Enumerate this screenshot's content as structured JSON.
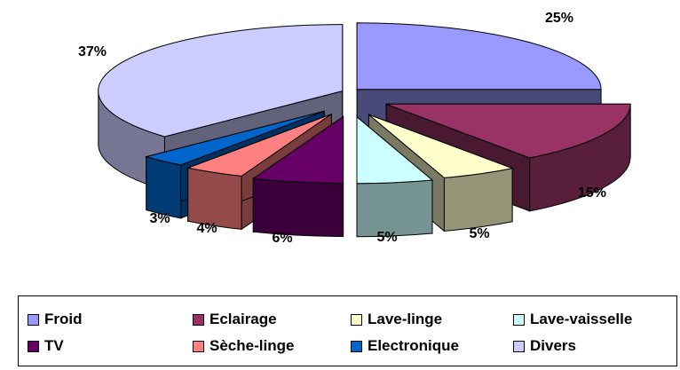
{
  "chart_data": {
    "type": "pie",
    "title": "",
    "style": "3d-exploded",
    "legend_position": "bottom",
    "slices": [
      {
        "label": "Froid",
        "value": 25,
        "display": "25%",
        "color": "#9999FF"
      },
      {
        "label": "Eclairage",
        "value": 15,
        "display": "15%",
        "color": "#993366"
      },
      {
        "label": "Lave-linge",
        "value": 5,
        "display": "5%",
        "color": "#FFFFCC"
      },
      {
        "label": "Lave-vaisselle",
        "value": 5,
        "display": "5%",
        "color": "#CCFFFF"
      },
      {
        "label": "TV",
        "value": 6,
        "display": "6%",
        "color": "#660066"
      },
      {
        "label": "Sèche-linge",
        "value": 4,
        "display": "4%",
        "color": "#FF8080"
      },
      {
        "label": "Electronique",
        "value": 3,
        "display": "3%",
        "color": "#0066CC"
      },
      {
        "label": "Divers",
        "value": 37,
        "display": "37%",
        "color": "#CCCCFF"
      }
    ]
  }
}
